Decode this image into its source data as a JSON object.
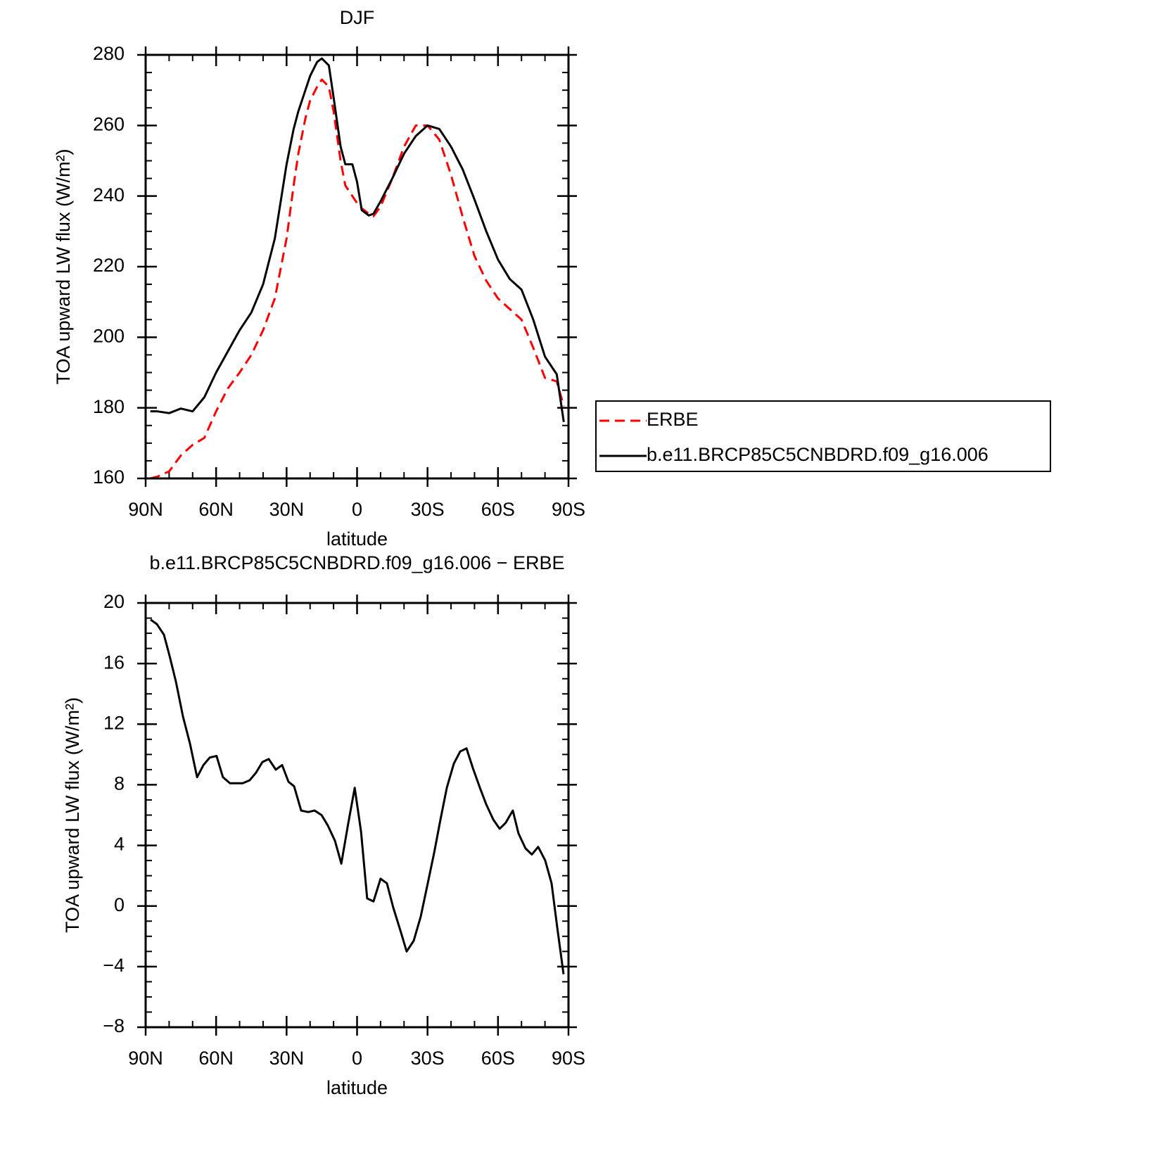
{
  "chart_data": [
    {
      "type": "line",
      "title": "DJF",
      "x_label": "latitude",
      "y_label": "TOA upward LW flux (W/m²)",
      "x": [
        88,
        85,
        80,
        75,
        70,
        65,
        60,
        55,
        50,
        45,
        40,
        35,
        30,
        27,
        25,
        22,
        20,
        17,
        15,
        12,
        10,
        7,
        5,
        2,
        0,
        -2,
        -5,
        -7,
        -10,
        -15,
        -20,
        -25,
        -30,
        -35,
        -40,
        -45,
        -50,
        -55,
        -60,
        -65,
        -70,
        -75,
        -80,
        -85,
        -88
      ],
      "series": [
        {
          "name": "ERBE",
          "color": "#ff0000",
          "dash": true,
          "values": [
            160,
            160.5,
            162,
            166.5,
            169.5,
            171.5,
            179,
            185.5,
            190,
            195,
            202,
            211,
            228,
            243,
            252,
            262,
            267,
            271,
            273,
            271,
            264,
            250,
            243,
            240,
            238,
            236.5,
            235,
            234.3,
            237,
            245,
            254,
            260,
            260,
            256,
            246,
            234,
            223,
            216,
            211,
            208,
            205,
            197,
            188.5,
            187.5,
            180.5
          ]
        },
        {
          "name": "b.e11.BRCP85C5CNBDRD.f09_g16.006",
          "color": "#000000",
          "dash": false,
          "values": [
            179,
            179,
            178.5,
            179.8,
            179,
            183,
            190,
            196,
            202,
            207,
            215,
            228,
            249,
            259,
            264,
            270,
            274,
            278,
            279,
            277,
            268,
            254,
            249,
            249,
            244,
            236,
            234.5,
            235,
            238.5,
            245,
            252,
            257,
            260,
            259,
            254,
            247.5,
            239,
            230,
            222,
            216.5,
            213.5,
            205,
            194.5,
            189.5,
            176
          ]
        }
      ],
      "xlim": [
        90,
        -90
      ],
      "xticks": [
        {
          "value": 90,
          "label": "90N"
        },
        {
          "value": 60,
          "label": "60N"
        },
        {
          "value": 30,
          "label": "30N"
        },
        0,
        {
          "value": -30,
          "label": "30S"
        },
        {
          "value": -60,
          "label": "60S"
        },
        {
          "value": -90,
          "label": "90S"
        }
      ],
      "ylim": [
        160,
        280
      ],
      "yticks": [
        160,
        180,
        200,
        220,
        240,
        260,
        280
      ],
      "legend": "right"
    },
    {
      "type": "line",
      "title": "b.e11.BRCP85C5CNBDRD.f09_g16.006 − ERBE",
      "x_label": "latitude",
      "y_label": "TOA upward LW flux (W/m²)",
      "x": [
        87.9,
        85.2,
        82.2,
        79.8,
        77.1,
        74.1,
        71.1,
        68.1,
        65.4,
        62.7,
        59.8,
        57.1,
        54.1,
        51.4,
        48.7,
        45.7,
        43.0,
        40.3,
        37.6,
        34.6,
        31.9,
        29.2,
        26.8,
        23.8,
        20.8,
        18.1,
        15.1,
        12.4,
        9.4,
        6.7,
        3.7,
        1.0,
        -1.7,
        -4.3,
        -7.0,
        -10.0,
        -12.7,
        -15.4,
        -18.8,
        -21.1,
        -24.1,
        -27.1,
        -30.1,
        -32.8,
        -35.5,
        -38.2,
        -41.2,
        -43.9,
        -46.6,
        -49.3,
        -52.3,
        -55.0,
        -58.0,
        -60.7,
        -63.3,
        -66.3,
        -68.7,
        -71.7,
        -74.4,
        -77.1,
        -80.1,
        -82.8,
        -85.2,
        -87.9
      ],
      "series": [
        {
          "color": "#000000",
          "dash": false,
          "values": [
            18.9,
            18.6,
            17.9,
            16.5,
            14.8,
            12.5,
            10.7,
            8.5,
            9.3,
            9.8,
            9.9,
            8.5,
            8.1,
            8.1,
            8.1,
            8.3,
            8.8,
            9.5,
            9.7,
            9.0,
            9.3,
            8.2,
            7.9,
            6.3,
            6.2,
            6.3,
            6.0,
            5.3,
            4.3,
            2.8,
            5.5,
            7.8,
            4.9,
            0.5,
            0.3,
            1.8,
            1.5,
            -0.1,
            -1.8,
            -3.0,
            -2.3,
            -0.7,
            1.5,
            3.5,
            5.7,
            7.8,
            9.4,
            10.2,
            10.4,
            9.1,
            7.8,
            6.7,
            5.7,
            5.1,
            5.5,
            6.3,
            4.8,
            3.8,
            3.4,
            3.9,
            3.0,
            1.5,
            -1.4,
            -4.5
          ]
        }
      ],
      "xlim": [
        90,
        -90
      ],
      "xticks": [
        {
          "value": 90,
          "label": "90N"
        },
        {
          "value": 60,
          "label": "60N"
        },
        {
          "value": 30,
          "label": "30N"
        },
        0,
        {
          "value": -30,
          "label": "30S"
        },
        {
          "value": -60,
          "label": "60S"
        },
        {
          "value": -90,
          "label": "90S"
        }
      ],
      "ylim": [
        -8,
        20
      ],
      "yticks": [
        {
          "value": -8,
          "label": "−8"
        },
        {
          "value": -4,
          "label": "−4"
        },
        0,
        4,
        8,
        12,
        16,
        20
      ]
    }
  ]
}
